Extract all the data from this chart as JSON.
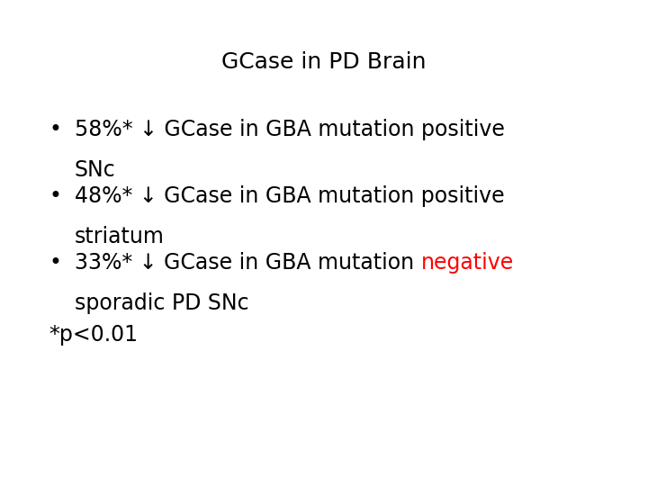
{
  "title": "GCase in PD Brain",
  "title_fontsize": 18,
  "title_color": "#000000",
  "background_color": "#ffffff",
  "bullet_fontsize": 17,
  "bullet1_line1": "58%* ↓ GCase in GBA mutation positive",
  "bullet1_line2": "SNc",
  "bullet2_line1": "48%* ↓ GCase in GBA mutation positive",
  "bullet2_line2": "striatum",
  "bullet3_prefix": "33%* ↓ GCase in GBA mutation ",
  "bullet3_red": "negative",
  "bullet3_line2": "sporadic PD SNc",
  "footnote": "*p<0.01",
  "footnote_fontsize": 17,
  "text_color": "#000000",
  "red_color": "#ff0000",
  "font_family": "sans-serif"
}
